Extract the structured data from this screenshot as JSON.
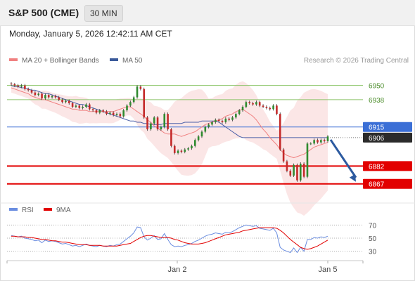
{
  "header": {
    "symbol": "S&P 500 (CME)",
    "timeframe": "30 MIN",
    "datetime": "Monday, January 5, 2026 12:42:11 AM CET"
  },
  "legend": {
    "ma20": "MA 20 + Bollinger Bands",
    "ma50": "MA 50",
    "copyright": "Research © 2026 Trading Central",
    "rsi": "RSI",
    "rsi_ma": "9MA"
  },
  "colors": {
    "bullish": "#2f8b2f",
    "bearish": "#c42a2a",
    "ma20": "#f08080",
    "ma50": "#4a5fa8",
    "bands_fill": "#fbe3e3",
    "pivot": "#3b6fd6",
    "support": "#e20000",
    "resistance": "#8cc46a",
    "arrow": "#2c5aa0",
    "rsi": "#6a8de0",
    "rsi_ma": "#e20000"
  },
  "chart_data": [
    {
      "type": "candlestick",
      "title": "S&P 500 (CME) 30 MIN",
      "x_tick_labels": [
        "Jan 2",
        "Jan 5"
      ],
      "ylim": [
        6855,
        6964
      ],
      "overlays": [
        "MA 20 + Bollinger Bands",
        "MA 50"
      ],
      "levels": [
        {
          "value": 6950,
          "role": "resistance"
        },
        {
          "value": 6938,
          "role": "resistance"
        },
        {
          "value": 6915,
          "role": "pivot"
        },
        {
          "value": 6906,
          "role": "last price"
        },
        {
          "value": 6882,
          "role": "support"
        },
        {
          "value": 6867,
          "role": "support"
        }
      ],
      "forecast_arrow": {
        "from": 6906,
        "to": 6867
      },
      "series": [
        {
          "name": "Price",
          "close": [
            6951,
            6950,
            6949,
            6950,
            6947,
            6946,
            6944,
            6942,
            6943,
            6939,
            6942,
            6940,
            6941,
            6940,
            6938,
            6936,
            6937,
            6935,
            6932,
            6933,
            6931,
            6932,
            6934,
            6930,
            6929,
            6927,
            6929,
            6928,
            6926,
            6927,
            6925,
            6926,
            6924,
            6929,
            6933,
            6936,
            6940,
            6949,
            6947,
            6923,
            6913,
            6918,
            6923,
            6913,
            6915,
            6926,
            6913,
            6899,
            6893,
            6895,
            6894,
            6896,
            6897,
            6899,
            6904,
            6907,
            6911,
            6915,
            6917,
            6919,
            6921,
            6920,
            6919,
            6922,
            6921,
            6923,
            6926,
            6929,
            6932,
            6936,
            6935,
            6934,
            6936,
            6933,
            6932,
            6931,
            6930,
            6933,
            6926,
            6896,
            6886,
            6878,
            6874,
            6883,
            6870,
            6884,
            6873,
            6901,
            6901,
            6904,
            6902,
            6904,
            6903,
            6907
          ],
          "ma20": [
            6948,
            6947,
            6946,
            6945,
            6944,
            6943,
            6941,
            6940,
            6939,
            6938,
            6938,
            6937,
            6936,
            6935,
            6934,
            6933,
            6932,
            6931,
            6930,
            6930,
            6929,
            6929,
            6929,
            6928,
            6928,
            6928,
            6928,
            6928,
            6928,
            6928,
            6928,
            6929,
            6930,
            6931,
            6932,
            6932,
            6930,
            6928,
            6926,
            6924,
            6921,
            6919,
            6916,
            6914,
            6912,
            6910,
            6909,
            6909,
            6909,
            6908,
            6907,
            6908,
            6909,
            6910,
            6911,
            6913,
            6915,
            6917,
            6918,
            6919,
            6920,
            6921,
            6922,
            6924,
            6925,
            6926,
            6928,
            6929,
            6930,
            6928,
            6926,
            6924,
            6921,
            6917,
            6913,
            6910,
            6906,
            6903,
            6900,
            6896,
            6893,
            6891,
            6890,
            6889,
            6890,
            6891,
            6892,
            6894,
            6896,
            6898,
            6899,
            6900,
            6901,
            6902
          ],
          "ma50": [
            6950,
            6949,
            6949,
            6948,
            6948,
            6947,
            6946,
            6946,
            6945,
            6944,
            6943,
            6943,
            6942,
            6941,
            6940,
            6939,
            6938,
            6937,
            6936,
            6935,
            6934,
            6934,
            6933,
            6932,
            6931,
            6930,
            6929,
            6928,
            6927,
            6926,
            6925,
            6924,
            6923,
            6922,
            6921,
            6920,
            6920,
            6919,
            6919,
            6918,
            6918,
            6917,
            6917,
            6917,
            6917,
            6918,
            6918,
            6918,
            6918,
            6918,
            6918,
            6919,
            6919,
            6919,
            6919,
            6919,
            6920,
            6920,
            6920,
            6920,
            6920,
            6919,
            6917,
            6915,
            6913,
            6911,
            6909,
            6907,
            6906,
            6906,
            6906,
            6906,
            6906,
            6906,
            6906,
            6906,
            6906,
            6906,
            6906,
            6906,
            6906,
            6906,
            6906,
            6906,
            6906,
            6906,
            6906,
            6906,
            6906,
            6906,
            6906,
            6906,
            6906,
            6906
          ]
        }
      ]
    },
    {
      "type": "line",
      "title": "RSI",
      "ylim": [
        20,
        80
      ],
      "y_ticks": [
        70,
        50,
        30
      ],
      "x_tick_labels": [
        "Jan 2",
        "Jan 5"
      ],
      "series": [
        {
          "name": "RSI",
          "values": [
            54,
            53,
            52,
            53,
            50,
            49,
            48,
            46,
            47,
            43,
            47,
            45,
            46,
            45,
            43,
            41,
            42,
            40,
            38,
            39,
            37,
            39,
            41,
            39,
            38,
            37,
            39,
            38,
            37,
            39,
            38,
            40,
            41,
            45,
            49,
            53,
            58,
            67,
            66,
            52,
            47,
            50,
            54,
            48,
            49,
            57,
            48,
            40,
            37,
            38,
            37,
            39,
            40,
            42,
            45,
            47,
            50,
            53,
            55,
            56,
            58,
            57,
            56,
            59,
            58,
            60,
            63,
            66,
            68,
            70,
            69,
            68,
            69,
            65,
            64,
            63,
            62,
            65,
            58,
            36,
            32,
            30,
            28,
            35,
            28,
            36,
            30,
            48,
            48,
            51,
            50,
            52,
            51,
            53
          ]
        },
        {
          "name": "9MA",
          "values": [
            53,
            53,
            52,
            52,
            52,
            51,
            51,
            50,
            49,
            48,
            48,
            47,
            46,
            46,
            45,
            44,
            44,
            43,
            42,
            41,
            40,
            40,
            40,
            39,
            39,
            39,
            39,
            38,
            38,
            38,
            38,
            38,
            39,
            40,
            41,
            42,
            45,
            48,
            51,
            53,
            54,
            54,
            53,
            52,
            51,
            51,
            51,
            50,
            48,
            47,
            45,
            43,
            42,
            41,
            41,
            41,
            42,
            43,
            45,
            47,
            49,
            51,
            53,
            55,
            56,
            57,
            58,
            59,
            61,
            62,
            63,
            64,
            65,
            66,
            66,
            66,
            66,
            66,
            65,
            62,
            58,
            53,
            48,
            44,
            40,
            36,
            34,
            33,
            34,
            36,
            38,
            41,
            44,
            47
          ]
        }
      ]
    }
  ]
}
